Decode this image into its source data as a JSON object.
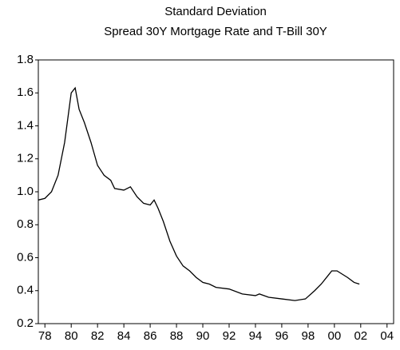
{
  "chart_data": {
    "type": "line",
    "title": "Standard Deviation",
    "subtitle": "Spread 30Y Mortgage Rate and T-Bill 30Y",
    "x": [
      1977.5,
      1978,
      1978.5,
      1979,
      1979.5,
      1980,
      1980.3,
      1980.6,
      1981,
      1981.5,
      1982,
      1982.5,
      1983,
      1983.3,
      1984,
      1984.5,
      1985,
      1985.5,
      1986,
      1986.3,
      1986.6,
      1987,
      1987.5,
      1988,
      1988.5,
      1989,
      1989.5,
      1990,
      1990.5,
      1991,
      1992,
      1993,
      1994,
      1994.3,
      1995,
      1996,
      1997,
      1997.8,
      1998.5,
      1999,
      1999.5,
      1999.8,
      2000.2,
      2000.6,
      2001,
      2001.5,
      2001.9
    ],
    "series": [
      {
        "color": "#000000",
        "values": [
          0.95,
          0.96,
          1.0,
          1.1,
          1.3,
          1.6,
          1.63,
          1.5,
          1.42,
          1.3,
          1.16,
          1.1,
          1.07,
          1.02,
          1.01,
          1.03,
          0.97,
          0.93,
          0.92,
          0.95,
          0.9,
          0.82,
          0.7,
          0.61,
          0.55,
          0.52,
          0.48,
          0.45,
          0.44,
          0.42,
          0.41,
          0.38,
          0.37,
          0.38,
          0.36,
          0.35,
          0.34,
          0.35,
          0.4,
          0.44,
          0.49,
          0.52,
          0.52,
          0.5,
          0.48,
          0.45,
          0.44
        ]
      }
    ],
    "xlim": [
      1977.5,
      2004.5
    ],
    "xticks": [
      {
        "value": 1978,
        "label": "78"
      },
      {
        "value": 1980,
        "label": "80"
      },
      {
        "value": 1982,
        "label": "82"
      },
      {
        "value": 1984,
        "label": "84"
      },
      {
        "value": 1986,
        "label": "86"
      },
      {
        "value": 1988,
        "label": "88"
      },
      {
        "value": 1990,
        "label": "90"
      },
      {
        "value": 1992,
        "label": "92"
      },
      {
        "value": 1994,
        "label": "94"
      },
      {
        "value": 1996,
        "label": "96"
      },
      {
        "value": 1998,
        "label": "98"
      },
      {
        "value": 2000,
        "label": "00"
      },
      {
        "value": 2002,
        "label": "02"
      },
      {
        "value": 2004,
        "label": "04"
      }
    ],
    "ylim": [
      0.2,
      1.8
    ],
    "yticks": [
      0.2,
      0.4,
      0.6,
      0.8,
      {
        "value": 1.0,
        "label": "1.0"
      },
      1.2,
      1.4,
      1.6,
      1.8
    ],
    "grid": false
  }
}
